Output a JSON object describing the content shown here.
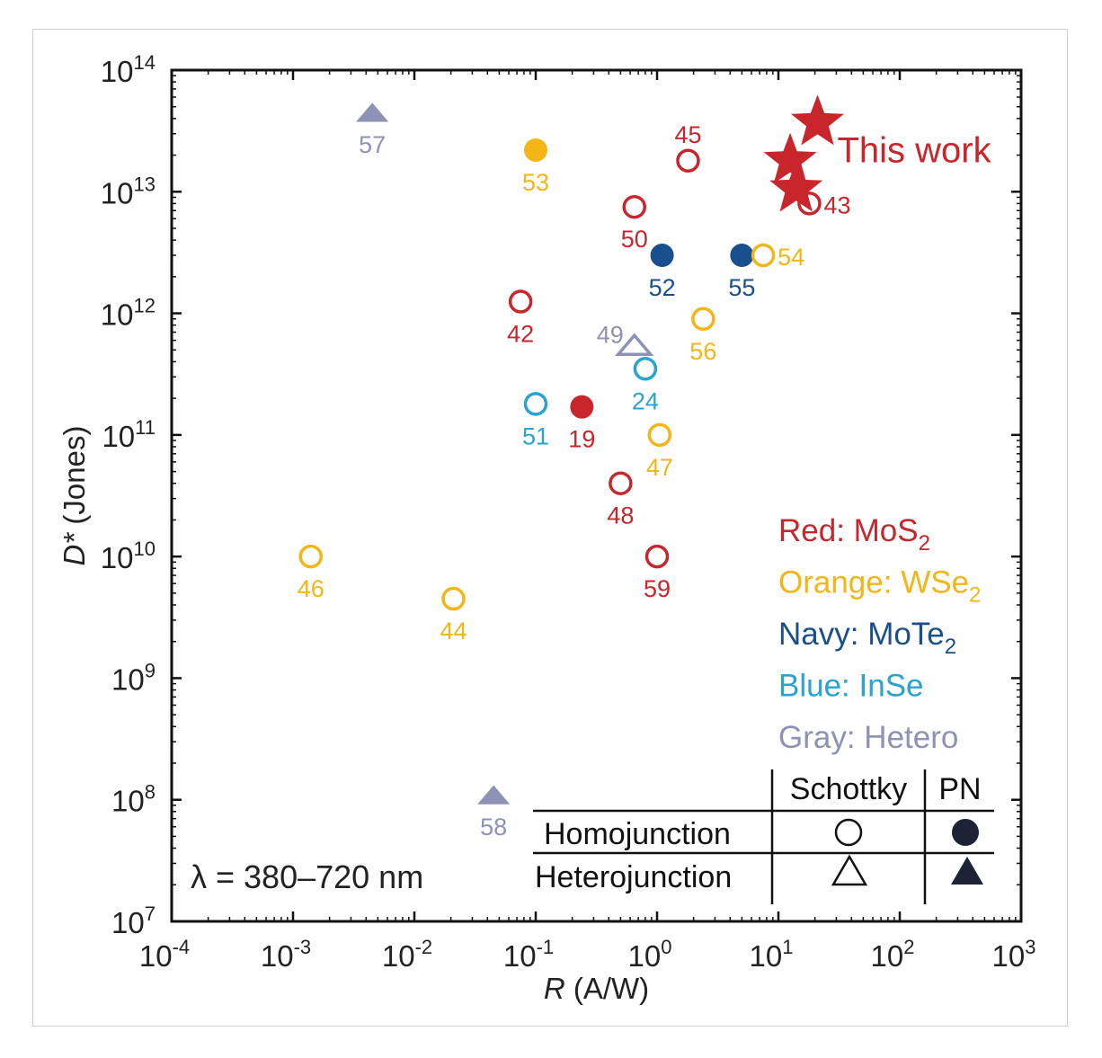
{
  "chart_data": {
    "type": "scatter",
    "xlabel": "R (A/W)",
    "ylabel": "D* (Jones)",
    "xscale": "log",
    "yscale": "log",
    "xlim": [
      0.0001,
      1000
    ],
    "ylim": [
      10000000,
      100000000000000
    ],
    "x_ticks": [
      {
        "base": "10",
        "exp": "-4",
        "value": 0.0001
      },
      {
        "base": "10",
        "exp": "-3",
        "value": 0.001
      },
      {
        "base": "10",
        "exp": "-2",
        "value": 0.01
      },
      {
        "base": "10",
        "exp": "-1",
        "value": 0.1
      },
      {
        "base": "10",
        "exp": "0",
        "value": 1
      },
      {
        "base": "10",
        "exp": "1",
        "value": 10
      },
      {
        "base": "10",
        "exp": "2",
        "value": 100
      },
      {
        "base": "10",
        "exp": "3",
        "value": 1000
      }
    ],
    "y_ticks": [
      {
        "base": "10",
        "exp": "7",
        "value": 10000000
      },
      {
        "base": "10",
        "exp": "8",
        "value": 100000000
      },
      {
        "base": "10",
        "exp": "9",
        "value": 1000000000
      },
      {
        "base": "10",
        "exp": "10",
        "value": 10000000000
      },
      {
        "base": "10",
        "exp": "11",
        "value": 100000000000
      },
      {
        "base": "10",
        "exp": "12",
        "value": 1000000000000
      },
      {
        "base": "10",
        "exp": "13",
        "value": 10000000000000
      },
      {
        "base": "10",
        "exp": "14",
        "value": 100000000000000
      }
    ],
    "annotation": "λ = 380–720 nm",
    "colors": {
      "red": "#c8262c",
      "orange": "#f4b516",
      "navy": "#1a4f8e",
      "blue": "#2aa3d0",
      "gray": "#8e92b4",
      "black": "#111111"
    },
    "points": [
      {
        "label": "57",
        "x": 0.0045,
        "y": 45000000000000,
        "material": "gray",
        "shape": "triangle",
        "filled": true,
        "label_pos": "below"
      },
      {
        "label": "53",
        "x": 0.1,
        "y": 22000000000000,
        "material": "orange",
        "shape": "circle",
        "filled": true,
        "label_pos": "below"
      },
      {
        "label": "45",
        "x": 1.8,
        "y": 18000000000000,
        "material": "red",
        "shape": "circle",
        "filled": false,
        "label_pos": "above"
      },
      {
        "label": "50",
        "x": 0.65,
        "y": 7500000000000,
        "material": "red",
        "shape": "circle",
        "filled": false,
        "label_pos": "below"
      },
      {
        "label": "43",
        "x": 18,
        "y": 8000000000000,
        "material": "red",
        "shape": "circle",
        "filled": false,
        "label_pos": "right"
      },
      {
        "label": "52",
        "x": 1.1,
        "y": 3000000000000,
        "material": "navy",
        "shape": "circle",
        "filled": true,
        "label_pos": "below"
      },
      {
        "label": "55",
        "x": 5,
        "y": 3000000000000,
        "material": "navy",
        "shape": "circle",
        "filled": true,
        "label_pos": "below"
      },
      {
        "label": "54",
        "x": 7.5,
        "y": 3000000000000,
        "material": "orange",
        "shape": "circle",
        "filled": false,
        "label_pos": "right"
      },
      {
        "label": "42",
        "x": 0.075,
        "y": 1250000000000,
        "material": "red",
        "shape": "circle",
        "filled": false,
        "label_pos": "below"
      },
      {
        "label": "56",
        "x": 2.4,
        "y": 900000000000,
        "material": "orange",
        "shape": "circle",
        "filled": false,
        "label_pos": "below"
      },
      {
        "label": "49",
        "x": 0.65,
        "y": 550000000000,
        "material": "gray",
        "shape": "triangle",
        "filled": false,
        "label_pos": "left"
      },
      {
        "label": "24",
        "x": 0.8,
        "y": 350000000000,
        "material": "blue",
        "shape": "circle",
        "filled": false,
        "label_pos": "below"
      },
      {
        "label": "51",
        "x": 0.1,
        "y": 180000000000,
        "material": "blue",
        "shape": "circle",
        "filled": false,
        "label_pos": "below"
      },
      {
        "label": "19",
        "x": 0.24,
        "y": 170000000000,
        "material": "red",
        "shape": "circle",
        "filled": true,
        "label_pos": "below"
      },
      {
        "label": "47",
        "x": 1.05,
        "y": 100000000000,
        "material": "orange",
        "shape": "circle",
        "filled": false,
        "label_pos": "below"
      },
      {
        "label": "48",
        "x": 0.5,
        "y": 40000000000,
        "material": "red",
        "shape": "circle",
        "filled": false,
        "label_pos": "below"
      },
      {
        "label": "46",
        "x": 0.0014,
        "y": 10000000000,
        "material": "orange",
        "shape": "circle",
        "filled": false,
        "label_pos": "below"
      },
      {
        "label": "59",
        "x": 1,
        "y": 10000000000,
        "material": "red",
        "shape": "circle",
        "filled": false,
        "label_pos": "below"
      },
      {
        "label": "44",
        "x": 0.021,
        "y": 4500000000,
        "material": "orange",
        "shape": "circle",
        "filled": false,
        "label_pos": "below"
      },
      {
        "label": "58",
        "x": 0.045,
        "y": 110000000,
        "material": "gray",
        "shape": "triangle",
        "filled": true,
        "label_pos": "below"
      }
    ],
    "this_work": {
      "label": "This work",
      "points": [
        {
          "x": 21,
          "y": 37000000000000
        },
        {
          "x": 12.5,
          "y": 18000000000000
        },
        {
          "x": 14,
          "y": 10500000000000
        }
      ]
    },
    "color_legend": [
      {
        "prefix": "Red: MoS",
        "sub": "2",
        "color": "red"
      },
      {
        "prefix": "Orange: WSe",
        "sub": "2",
        "color": "orange"
      },
      {
        "prefix": "Navy: MoTe",
        "sub": "2",
        "color": "navy"
      },
      {
        "prefix": "Blue: InSe",
        "sub": "",
        "color": "blue"
      },
      {
        "prefix": "Gray: Hetero",
        "sub": "",
        "color": "gray"
      }
    ],
    "symbol_legend": {
      "col_headers": [
        "Schottky",
        "PN"
      ],
      "rows": [
        {
          "label": "Homojunction",
          "shape": "circle"
        },
        {
          "label": "Heterojunction",
          "shape": "triangle"
        }
      ]
    }
  }
}
